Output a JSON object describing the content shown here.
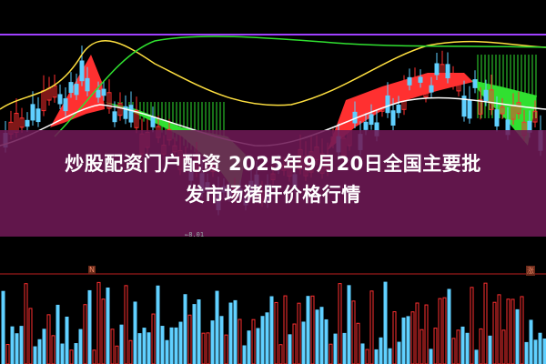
{
  "article": {
    "title_line1": "炒股配资门户配资 2025年9月20日全国主要批",
    "title_line2": "发市场猪肝价格行情"
  },
  "chart": {
    "low_price_label": "8.01",
    "left_tag": "N",
    "right_tag": "涨"
  },
  "colors": {
    "up": "#ff3030",
    "down": "#60d0ff",
    "ma_purple": "#a040ff",
    "ma_yellow": "#ffe040",
    "ma_green": "#30e030",
    "ma_white": "#ffffff",
    "overlay": "#6e1955"
  }
}
